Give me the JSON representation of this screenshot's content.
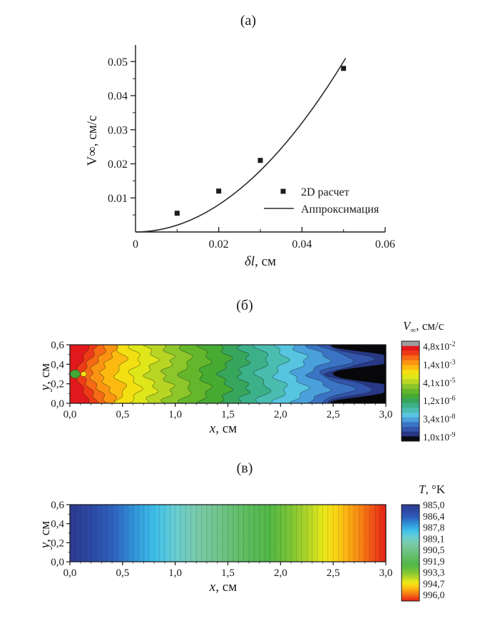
{
  "page": {
    "background": "#ffffff"
  },
  "chart_data": [
    {
      "panel": "a",
      "type": "scatter",
      "title": "(а)",
      "xlabel": {
        "var": "δl",
        "rest": ", см"
      },
      "ylabel": "V∞, см/с",
      "xlim": [
        0,
        0.06
      ],
      "ylim": [
        0,
        0.055
      ],
      "grid": false,
      "x_ticks": [
        {
          "v": 0,
          "label": "0"
        },
        {
          "v": 0.02,
          "label": "0.02"
        },
        {
          "v": 0.04,
          "label": "0.04"
        },
        {
          "v": 0.06,
          "label": "0.06"
        }
      ],
      "x_minor_ticks": [
        0.01,
        0.03,
        0.05
      ],
      "y_ticks": [
        {
          "v": 0.01,
          "label": "0.01"
        },
        {
          "v": 0.02,
          "label": "0.02"
        },
        {
          "v": 0.03,
          "label": "0.03"
        },
        {
          "v": 0.04,
          "label": "0.04"
        },
        {
          "v": 0.05,
          "label": "0.05"
        }
      ],
      "y_minor_ticks": [
        0.005,
        0.015,
        0.025,
        0.035,
        0.045
      ],
      "legend_position": "inside lower right",
      "series": [
        {
          "name": "2D расчет",
          "kind": "points",
          "marker": "square",
          "color": "#1c1c1c",
          "points": [
            [
              0.01,
              0.0055
            ],
            [
              0.02,
              0.012
            ],
            [
              0.03,
              0.021
            ],
            [
              0.05,
              0.048
            ]
          ]
        },
        {
          "name": "Аппроксимация",
          "kind": "line",
          "color": "#2b2b2b",
          "fit": "quadratic",
          "coefficient": 20,
          "x_range": [
            0,
            0.0505
          ]
        }
      ]
    },
    {
      "panel": "б",
      "type": "contour-map",
      "title": "(б)",
      "xlabel": {
        "var": "x",
        "rest": ", см"
      },
      "ylabel": {
        "var": "y",
        "rest": ", см"
      },
      "xlim": [
        0,
        3.0
      ],
      "ylim": [
        0,
        0.6
      ],
      "x_ticks": [
        {
          "v": 0,
          "label": "0,0"
        },
        {
          "v": 0.5,
          "label": "0,5"
        },
        {
          "v": 1.0,
          "label": "1,0"
        },
        {
          "v": 1.5,
          "label": "1,5"
        },
        {
          "v": 2.0,
          "label": "2,0"
        },
        {
          "v": 2.5,
          "label": "2,5"
        },
        {
          "v": 3.0,
          "label": "3,0"
        }
      ],
      "y_ticks": [
        {
          "v": 0,
          "label": "0,0"
        },
        {
          "v": 0.2,
          "label": "0,2"
        },
        {
          "v": 0.4,
          "label": "0,4"
        },
        {
          "v": 0.6,
          "label": "0,6"
        }
      ],
      "minor_step_x": 0.1,
      "minor_step_y": 0.1,
      "background": "#070709",
      "bands": [
        {
          "color": "#e2191c",
          "x_end": 0.12,
          "amp": 0.05,
          "ripple": 0.015,
          "shape": "corner"
        },
        {
          "color": "#ee3b17",
          "x_end": 0.19,
          "amp": 0.06,
          "ripple": 0.018,
          "shape": "corner"
        },
        {
          "color": "#f66a15",
          "x_end": 0.27,
          "amp": 0.07,
          "ripple": 0.02,
          "shape": "corner"
        },
        {
          "color": "#fb9413",
          "x_end": 0.37,
          "amp": 0.07,
          "ripple": 0.02,
          "shape": "corner"
        },
        {
          "color": "#fcba10",
          "x_end": 0.48,
          "amp": 0.05,
          "ripple": 0.025,
          "shape": "mid"
        },
        {
          "color": "#f4df12",
          "x_end": 0.62,
          "amp": 0.05,
          "ripple": 0.025,
          "shape": "mid"
        },
        {
          "color": "#dfe61a",
          "x_end": 0.77,
          "amp": 0.05,
          "ripple": 0.03,
          "shape": "mid"
        },
        {
          "color": "#b8d524",
          "x_end": 0.93,
          "amp": 0.05,
          "ripple": 0.03,
          "shape": "mid"
        },
        {
          "color": "#8cc62b",
          "x_end": 1.1,
          "amp": 0.05,
          "ripple": 0.03,
          "shape": "mid"
        },
        {
          "color": "#64b72c",
          "x_end": 1.28,
          "amp": 0.05,
          "ripple": 0.03,
          "shape": "mid"
        },
        {
          "color": "#46aa33",
          "x_end": 1.47,
          "amp": 0.05,
          "ripple": 0.03,
          "shape": "mid"
        },
        {
          "color": "#38a55c",
          "x_end": 1.65,
          "amp": 0.05,
          "ripple": 0.03,
          "shape": "mid"
        },
        {
          "color": "#3cb089",
          "x_end": 1.83,
          "amp": 0.06,
          "ripple": 0.03,
          "shape": "mid"
        },
        {
          "color": "#4bbcb0",
          "x_end": 2.0,
          "amp": 0.06,
          "ripple": 0.03,
          "shape": "mid"
        },
        {
          "color": "#57c4e0",
          "x_end": 2.18,
          "amp": 0.07,
          "ripple": 0.03,
          "shape": "mid"
        },
        {
          "color": "#4aa0da",
          "x_end": 2.36,
          "amp": 0.1,
          "ripple": 0.03,
          "shape": "mid"
        },
        {
          "color": "#3b74c4",
          "x_end": 2.53,
          "amp": 0.16,
          "ripple": 0.03,
          "shape": "mid"
        },
        {
          "color": "#3355aa",
          "x_end": 2.66,
          "amp": 0.22,
          "ripple": 0.025,
          "shape": "mid"
        },
        {
          "color": "#293787",
          "x_end": 2.8,
          "amp": 0.32,
          "ripple": 0.02,
          "shape": "mid"
        }
      ],
      "spots": [
        {
          "x": 0.05,
          "y": 0.3,
          "rx": 7,
          "ry": 6,
          "color": "#42a834"
        },
        {
          "x": 0.13,
          "y": 0.3,
          "rx": 4,
          "ry": 3.5,
          "color": "#f4df12"
        }
      ],
      "colorbar": {
        "title": {
          "var": "V",
          "sub": "∞",
          "rest": ", см/с"
        },
        "band_colors": [
          "#9e9e9e",
          "#e2191c",
          "#ee3b17",
          "#f66a15",
          "#fb9413",
          "#fcba10",
          "#f4df12",
          "#dfe61a",
          "#b8d524",
          "#8cc62b",
          "#64b72c",
          "#46aa33",
          "#38a55c",
          "#3cb089",
          "#4bbcb0",
          "#57c4e0",
          "#4aa0da",
          "#3b74c4",
          "#3355aa",
          "#293787",
          "#0a0a12"
        ],
        "tick_labels": [
          {
            "m": "4,8x10",
            "e": "-2"
          },
          {
            "m": "1,4x10",
            "e": "-3"
          },
          {
            "m": "4,1x10",
            "e": "-5"
          },
          {
            "m": "1,2x10",
            "e": "-6"
          },
          {
            "m": "3,4x10",
            "e": "-8"
          },
          {
            "m": "1,0x10",
            "e": "-9"
          }
        ]
      }
    },
    {
      "panel": "в",
      "type": "heatmap",
      "title": "(в)",
      "xlabel": {
        "var": "x",
        "rest": ", см"
      },
      "ylabel": {
        "var": "y",
        "rest": ", см"
      },
      "xlim": [
        0,
        3.0
      ],
      "ylim": [
        0,
        0.6
      ],
      "x_ticks": [
        {
          "v": 0,
          "label": "0,0"
        },
        {
          "v": 0.5,
          "label": "0,5"
        },
        {
          "v": 1.0,
          "label": "1,0"
        },
        {
          "v": 1.5,
          "label": "1,5"
        },
        {
          "v": 2.0,
          "label": "2,0"
        },
        {
          "v": 2.5,
          "label": "2,5"
        },
        {
          "v": 3.0,
          "label": "3,0"
        }
      ],
      "y_ticks": [
        {
          "v": 0,
          "label": "0,0"
        },
        {
          "v": 0.2,
          "label": "0,2"
        },
        {
          "v": 0.4,
          "label": "0,4"
        },
        {
          "v": 0.6,
          "label": "0,6"
        }
      ],
      "minor_step_x": 0.1,
      "minor_step_y": 0.1,
      "stripe_count": 60,
      "gradient_stops": [
        {
          "o": 0.0,
          "c": "#2c3a8e"
        },
        {
          "o": 0.07,
          "c": "#2d4aa6"
        },
        {
          "o": 0.14,
          "c": "#2f64c0"
        },
        {
          "o": 0.2,
          "c": "#2f93d8"
        },
        {
          "o": 0.27,
          "c": "#3fc0ea"
        },
        {
          "o": 0.33,
          "c": "#67cdd4"
        },
        {
          "o": 0.4,
          "c": "#79cbab"
        },
        {
          "o": 0.48,
          "c": "#6fc386"
        },
        {
          "o": 0.55,
          "c": "#5fbd62"
        },
        {
          "o": 0.63,
          "c": "#52b746"
        },
        {
          "o": 0.7,
          "c": "#7ec636"
        },
        {
          "o": 0.76,
          "c": "#b9d826"
        },
        {
          "o": 0.8,
          "c": "#e8e91a"
        },
        {
          "o": 0.84,
          "c": "#fad614"
        },
        {
          "o": 0.88,
          "c": "#fbae12"
        },
        {
          "o": 0.92,
          "c": "#f78313"
        },
        {
          "o": 0.96,
          "c": "#f04f15"
        },
        {
          "o": 1.0,
          "c": "#e52118"
        }
      ],
      "colorbar": {
        "title": {
          "var": "T",
          "rest": ", °K"
        },
        "tick_labels": [
          "985,0",
          "986,4",
          "987,8",
          "989,1",
          "990,5",
          "991,9",
          "993,3",
          "994,7",
          "996,0"
        ]
      }
    }
  ]
}
